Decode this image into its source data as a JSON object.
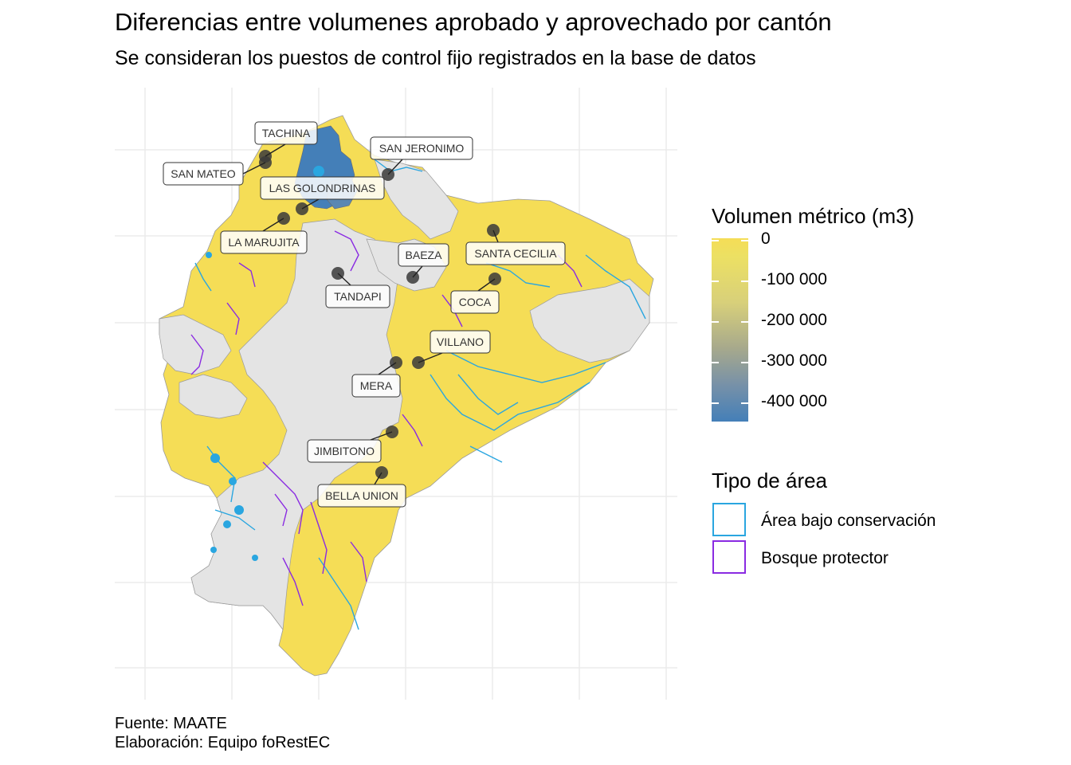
{
  "title": "Diferencias entre volumenes aprobado y aprovechado por cantón",
  "subtitle": "Se consideran los puestos de control fijo registrados en la base de datos",
  "caption": {
    "source": "Fuente: MAATE",
    "author": "Elaboración: Equipo foRestEC"
  },
  "legend_volume": {
    "title": "Volumen métrico (m3)",
    "ticks": [
      "0",
      "-100 000",
      "-200 000",
      "-300 000",
      "-400 000"
    ],
    "color_low": "#447fb8",
    "color_high": "#f5dd56"
  },
  "legend_area": {
    "title": "Tipo de área",
    "items": [
      {
        "label": "Área bajo conservación",
        "color": "#2aa6e0"
      },
      {
        "label": "Bosque protector",
        "color": "#8a2be2"
      }
    ]
  },
  "control_points": [
    {
      "name": "TACHINA"
    },
    {
      "name": "SAN MATEO"
    },
    {
      "name": "SAN JERONIMO"
    },
    {
      "name": "LAS GOLONDRINAS"
    },
    {
      "name": "LA MARUJITA"
    },
    {
      "name": "BAEZA"
    },
    {
      "name": "SANTA CECILIA"
    },
    {
      "name": "TANDAPI"
    },
    {
      "name": "COCA"
    },
    {
      "name": "VILLANO"
    },
    {
      "name": "MERA"
    },
    {
      "name": "JIMBITONO"
    },
    {
      "name": "BELLA UNION"
    }
  ],
  "colors": {
    "canton_yellow": "#f5dd56",
    "canton_grey": "#e4e4e4",
    "canton_blue": "#447fb8",
    "point_fill": "#3a3a3a"
  }
}
